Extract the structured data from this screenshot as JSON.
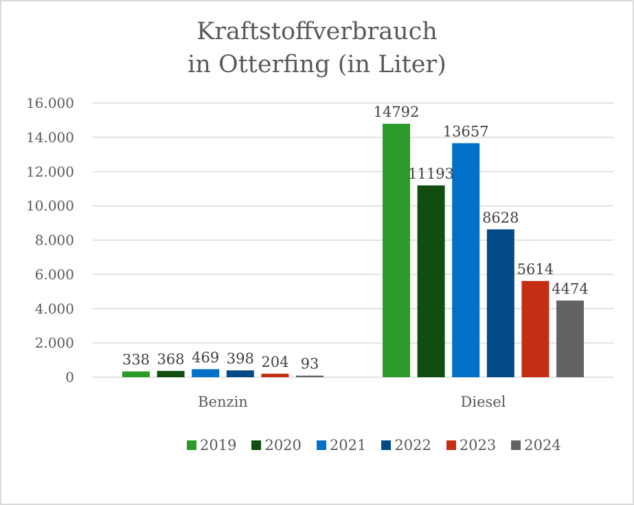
{
  "chart_data": {
    "type": "bar",
    "title": "Kraftstoffverbrauch in Otterfing (in Liter)",
    "title_lines": [
      "Kraftstoffverbrauch",
      "in Otterfing (in Liter)"
    ],
    "xlabel": "",
    "ylabel": "",
    "categories": [
      "Benzin",
      "Diesel"
    ],
    "ylim": [
      0,
      16000
    ],
    "yticks": [
      0,
      2000,
      4000,
      6000,
      8000,
      10000,
      12000,
      14000,
      16000
    ],
    "ytick_labels": [
      "0",
      "2.000",
      "4.000",
      "6.000",
      "8.000",
      "10.000",
      "12.000",
      "14.000",
      "16.000"
    ],
    "grid": true,
    "legend_position": "bottom",
    "series": [
      {
        "name": "2019",
        "color": "#2a9a28",
        "values": [
          338,
          14792
        ]
      },
      {
        "name": "2020",
        "color": "#0f4e0f",
        "values": [
          368,
          11193
        ]
      },
      {
        "name": "2021",
        "color": "#0070c9",
        "values": [
          469,
          13657
        ]
      },
      {
        "name": "2022",
        "color": "#024a86",
        "values": [
          398,
          8628
        ]
      },
      {
        "name": "2023",
        "color": "#c42f14",
        "values": [
          204,
          5614
        ]
      },
      {
        "name": "2024",
        "color": "#636363",
        "values": [
          93,
          4474
        ]
      }
    ]
  }
}
